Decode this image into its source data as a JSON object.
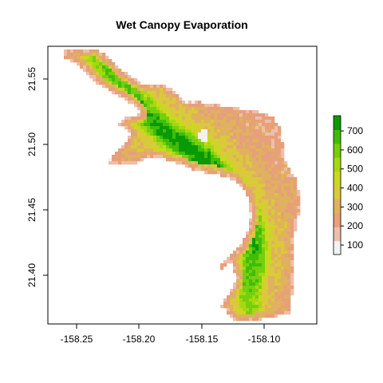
{
  "title": "Wet Canopy Evaporation",
  "x_ticks": [
    "-158.25",
    "-158.20",
    "-158.15",
    "-158.10"
  ],
  "y_ticks": [
    "21.40",
    "21.45",
    "21.50",
    "21.55"
  ],
  "legend_ticks": [
    "100",
    "200",
    "300",
    "400",
    "500",
    "600",
    "700"
  ],
  "colors": {
    "ramp": [
      "#f2f2f2",
      "#eebeaa",
      "#e6a07a",
      "#e0b15e",
      "#dac93a",
      "#c8d91f",
      "#a6d812",
      "#75cf0c",
      "#3fbd0a",
      "#0b9a07"
    ],
    "frame": "#000000"
  },
  "map_data": {
    "x_range": [
      -158.275,
      -158.07
    ],
    "y_range": [
      21.362,
      21.573
    ],
    "value_range": [
      50,
      780
    ],
    "ridge": [
      [
        -158.235,
        21.566,
        560
      ],
      [
        -158.225,
        21.555,
        620
      ],
      [
        -158.21,
        21.54,
        660
      ],
      [
        -158.195,
        21.525,
        700
      ],
      [
        -158.18,
        21.51,
        740
      ],
      [
        -158.165,
        21.5,
        760
      ],
      [
        -158.15,
        21.49,
        760
      ],
      [
        -158.135,
        21.475,
        740
      ],
      [
        -158.122,
        21.46,
        720
      ],
      [
        -158.112,
        21.445,
        700
      ],
      [
        -158.108,
        21.43,
        690
      ],
      [
        -158.108,
        21.415,
        680
      ],
      [
        -158.11,
        21.4,
        660
      ],
      [
        -158.112,
        21.385,
        620
      ],
      [
        -158.11,
        21.372,
        560
      ]
    ],
    "sampled_cells": [
      [
        -158.1,
        21.375,
        350
      ],
      [
        -158.085,
        21.4,
        300
      ],
      [
        -158.08,
        21.45,
        260
      ],
      [
        -158.2,
        21.495,
        250
      ],
      [
        -158.145,
        21.505,
        130
      ],
      [
        -158.215,
        21.48,
        380
      ]
    ]
  }
}
